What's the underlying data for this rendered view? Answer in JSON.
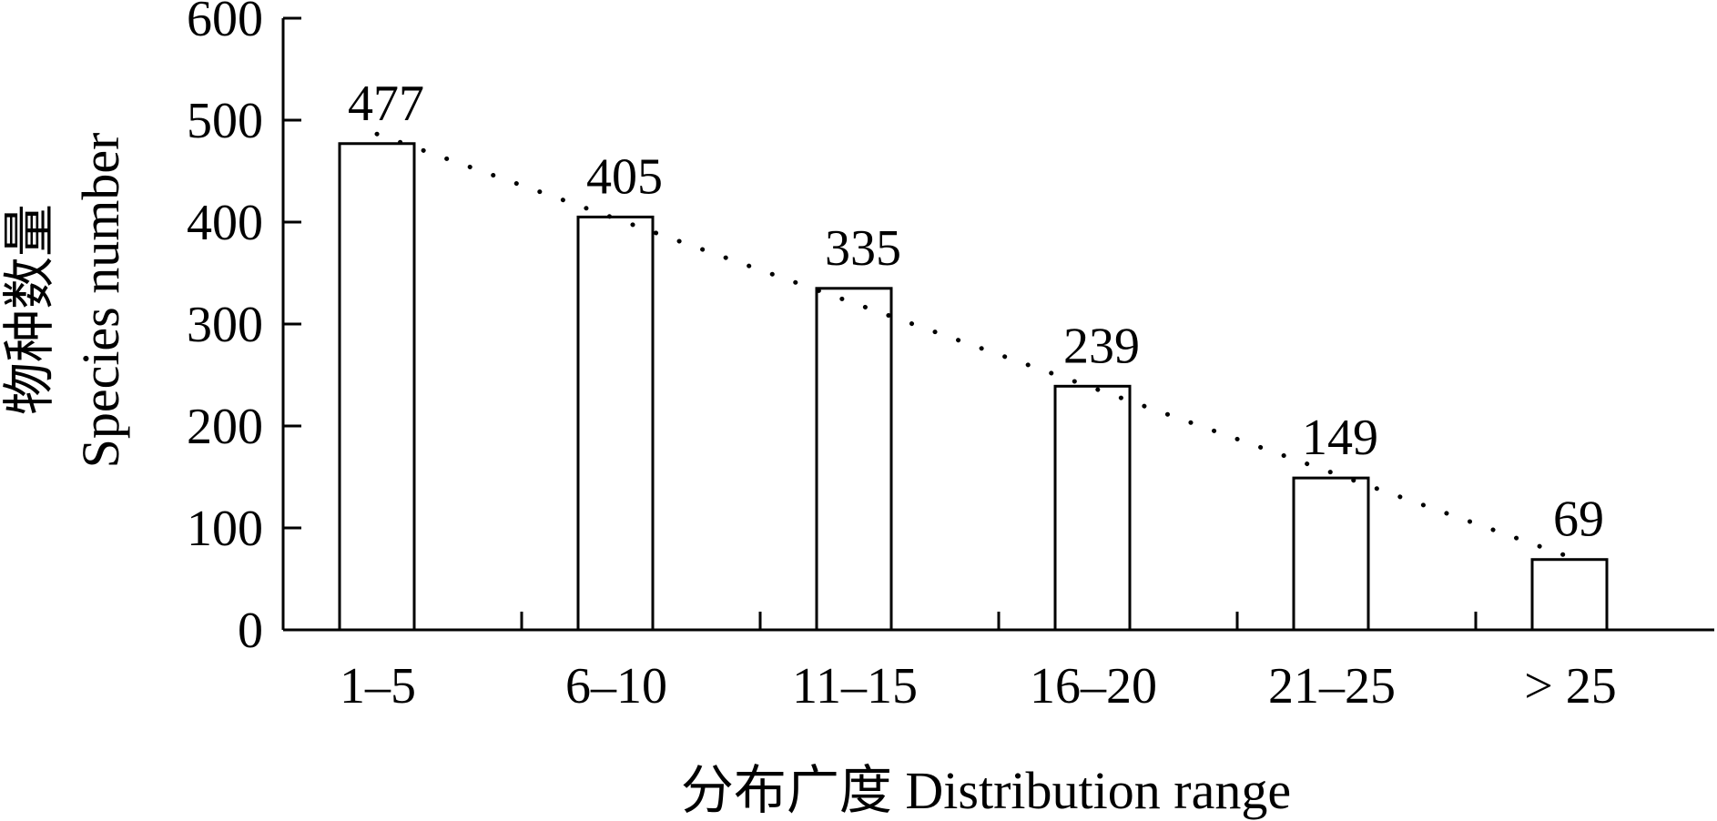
{
  "chart_data": {
    "type": "bar",
    "categories": [
      "1–5",
      "6–10",
      "11–15",
      "16–20",
      "21–25",
      "> 25"
    ],
    "values": [
      477,
      405,
      335,
      239,
      149,
      69
    ],
    "data_labels": [
      "477",
      "405",
      "335",
      "239",
      "149",
      "69"
    ],
    "xlabel": "分布广度 Distribution range",
    "ylabel_line1": "物种数量",
    "ylabel_line2": "Species number",
    "ylim": [
      0,
      600
    ],
    "yticks": [
      0,
      100,
      200,
      300,
      400,
      500,
      600
    ],
    "ytick_labels": [
      "0",
      "100",
      "200",
      "300",
      "400",
      "500",
      "600"
    ],
    "trendline": "dotted linear",
    "grid": false,
    "legend": "none",
    "colors": {
      "bar_fill": "#ffffff",
      "bar_stroke": "#000000",
      "axis": "#000000"
    }
  }
}
